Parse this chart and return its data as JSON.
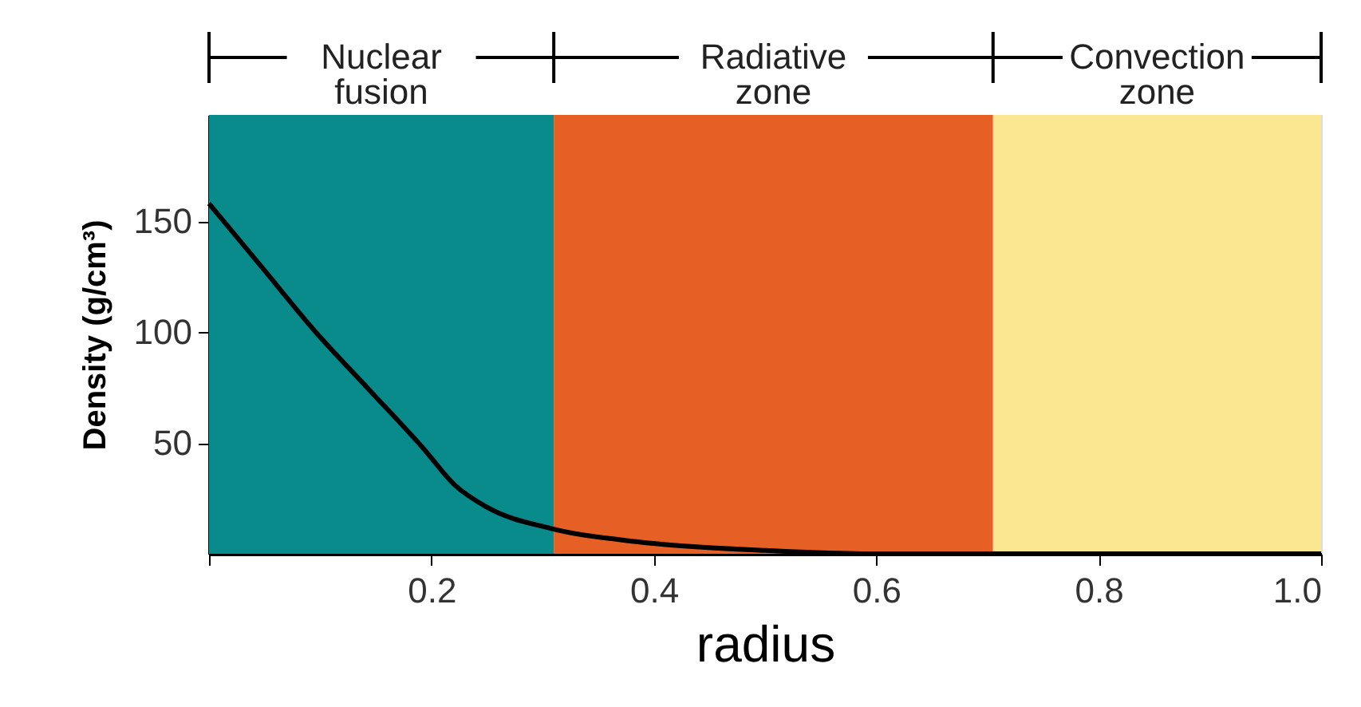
{
  "chart_data": {
    "type": "line",
    "xlabel": "radius",
    "ylabel": "Density (g/cm³)",
    "x": [
      0,
      0.048,
      0.096,
      0.144,
      0.192,
      0.221,
      0.25,
      0.307,
      0.384,
      0.5,
      0.6,
      0.8,
      1.0
    ],
    "series": [
      {
        "color": "#000000",
        "values": [
          158,
          129,
          100,
          74,
          48,
          31,
          21,
          11.5,
          5.5,
          1.5,
          0,
          0,
          0
        ]
      }
    ],
    "xlim": [
      0,
      1.0
    ],
    "ylim": [
      0,
      198
    ],
    "xticks": [
      {
        "value": 0,
        "label": null
      },
      0.2,
      0.4,
      0.6,
      0.8,
      {
        "value": 1.0,
        "label": "1.0"
      }
    ],
    "yticks": [
      50,
      100,
      150
    ],
    "bands": [
      {
        "axis": "x",
        "from": 0,
        "to": 0.31,
        "label": "Nuclear fusion",
        "color": "#0a8b8b"
      },
      {
        "axis": "x",
        "from": 0.31,
        "to": 0.705,
        "label": "Radiative zone",
        "color": "#e65f25"
      },
      {
        "axis": "x",
        "from": 0.705,
        "to": 1.0,
        "label": "Convection zone",
        "color": "#fbe692"
      }
    ],
    "grid": false,
    "marker": "none",
    "line_style": "solid"
  }
}
